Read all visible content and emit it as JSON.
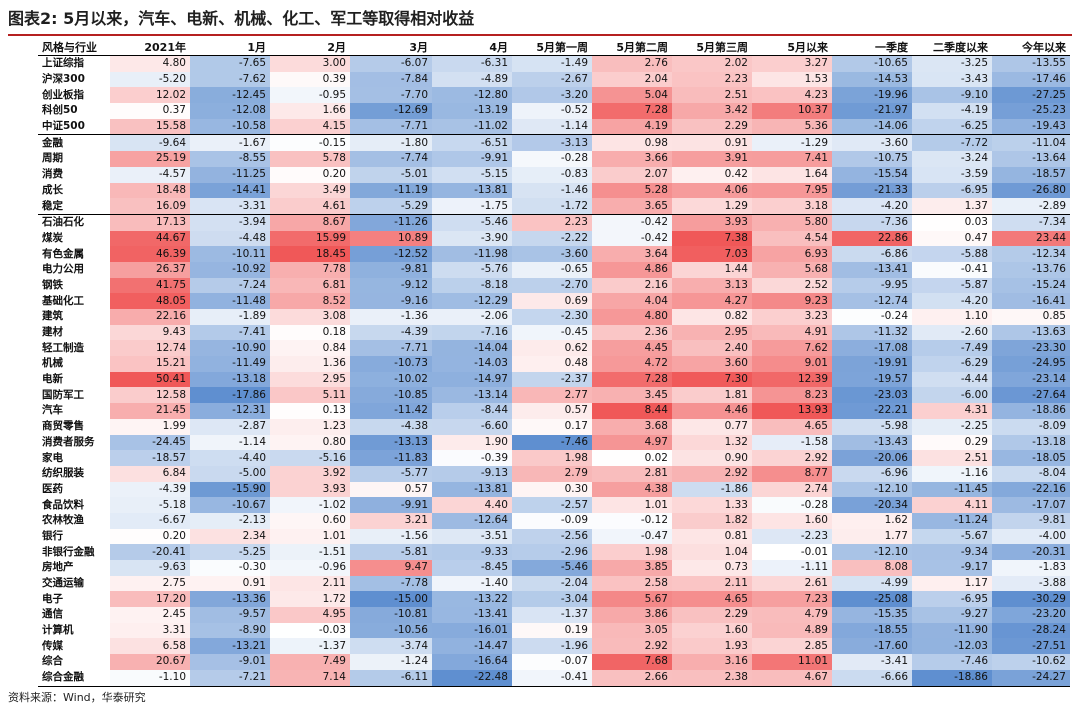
{
  "title": "图表2:  5月以来，汽车、电新、机械、化工、军工等取得相对收益",
  "source": "资料来源：Wind，华泰研究",
  "colors": {
    "positive": "#f06060",
    "negative": "#5f8fd0",
    "title_rule": "#b52020"
  },
  "chart_data": {
    "type": "heatmap",
    "columns": [
      "风格与行业",
      "2021年",
      "1月",
      "2月",
      "3月",
      "4月",
      "5月第一周",
      "5月第二周",
      "5月第三周",
      "5月以来",
      "一季度",
      "二季度以来",
      "今年以来"
    ],
    "groups": [
      {
        "rows": [
          {
            "label": "上证综指",
            "values": [
              4.8,
              -7.65,
              3.0,
              -6.07,
              -6.31,
              -1.49,
              2.76,
              2.02,
              3.27,
              -10.65,
              -3.25,
              -13.55
            ]
          },
          {
            "label": "沪深300",
            "values": [
              -5.2,
              -7.62,
              0.39,
              -7.84,
              -4.89,
              -2.67,
              2.04,
              2.23,
              1.53,
              -14.53,
              -3.43,
              -17.46
            ]
          },
          {
            "label": "创业板指",
            "values": [
              12.02,
              -12.45,
              -0.95,
              -7.7,
              -12.8,
              -3.2,
              5.04,
              2.51,
              4.23,
              -19.96,
              -9.1,
              -27.25
            ]
          },
          {
            "label": "科创50",
            "values": [
              0.37,
              -12.08,
              1.66,
              -12.69,
              -13.19,
              -0.52,
              7.28,
              3.42,
              10.37,
              -21.97,
              -4.19,
              -25.23
            ]
          },
          {
            "label": "中证500",
            "values": [
              15.58,
              -10.58,
              4.15,
              -7.71,
              -11.02,
              -1.14,
              4.19,
              2.29,
              5.36,
              -14.06,
              -6.25,
              -19.43
            ]
          }
        ]
      },
      {
        "rows": [
          {
            "label": "金融",
            "values": [
              -9.64,
              -1.67,
              -0.15,
              -1.8,
              -6.51,
              -3.13,
              0.98,
              0.91,
              -1.29,
              -3.6,
              -7.72,
              -11.04
            ]
          },
          {
            "label": "周期",
            "values": [
              25.19,
              -8.55,
              5.78,
              -7.74,
              -9.91,
              -0.28,
              3.66,
              3.91,
              7.41,
              -10.75,
              -3.24,
              -13.64
            ]
          },
          {
            "label": "消费",
            "values": [
              -4.57,
              -11.25,
              0.2,
              -5.01,
              -5.15,
              -0.83,
              2.07,
              0.42,
              1.64,
              -15.54,
              -3.59,
              -18.57
            ]
          },
          {
            "label": "成长",
            "values": [
              18.48,
              -14.41,
              3.49,
              -11.19,
              -13.81,
              -1.46,
              5.28,
              4.06,
              7.95,
              -21.33,
              -6.95,
              -26.8
            ]
          },
          {
            "label": "稳定",
            "values": [
              16.09,
              -3.31,
              4.61,
              -5.29,
              -1.75,
              -1.72,
              3.65,
              1.29,
              3.18,
              -4.2,
              1.37,
              -2.89
            ]
          }
        ]
      },
      {
        "rows": [
          {
            "label": "石油石化",
            "values": [
              17.13,
              -3.94,
              8.67,
              -11.26,
              -5.46,
              2.23,
              -0.42,
              3.93,
              5.8,
              -7.36,
              0.03,
              -7.34
            ]
          },
          {
            "label": "煤炭",
            "values": [
              44.67,
              -4.48,
              15.99,
              10.89,
              -3.9,
              -2.22,
              -0.42,
              7.38,
              4.54,
              22.86,
              0.47,
              23.44
            ]
          },
          {
            "label": "有色金属",
            "values": [
              46.39,
              -10.11,
              18.45,
              -12.52,
              -11.98,
              -3.6,
              3.64,
              7.03,
              6.93,
              -6.86,
              -5.88,
              -12.34
            ]
          },
          {
            "label": "电力公用",
            "values": [
              26.37,
              -10.92,
              7.78,
              -9.81,
              -5.76,
              -0.65,
              4.86,
              1.44,
              5.68,
              -13.41,
              -0.41,
              -13.76
            ]
          },
          {
            "label": "钢铁",
            "values": [
              41.75,
              -7.24,
              6.81,
              -9.12,
              -8.18,
              -2.7,
              2.16,
              3.13,
              2.52,
              -9.95,
              -5.87,
              -15.24
            ]
          },
          {
            "label": "基础化工",
            "values": [
              48.05,
              -11.48,
              8.52,
              -9.16,
              -12.29,
              0.69,
              4.04,
              4.27,
              9.23,
              -12.74,
              -4.2,
              -16.41
            ]
          },
          {
            "label": "建筑",
            "values": [
              22.16,
              -1.89,
              3.08,
              -1.36,
              -2.06,
              -2.3,
              4.8,
              0.82,
              3.23,
              -0.24,
              1.1,
              0.85
            ]
          },
          {
            "label": "建材",
            "values": [
              9.43,
              -7.41,
              0.18,
              -4.39,
              -7.16,
              -0.45,
              2.36,
              2.95,
              4.91,
              -11.32,
              -2.6,
              -13.63
            ]
          },
          {
            "label": "轻工制造",
            "values": [
              12.74,
              -10.9,
              0.84,
              -7.71,
              -14.04,
              0.62,
              4.45,
              2.4,
              7.62,
              -17.08,
              -7.49,
              -23.3
            ]
          },
          {
            "label": "机械",
            "values": [
              15.21,
              -11.49,
              1.36,
              -10.73,
              -14.03,
              0.48,
              4.72,
              3.6,
              9.01,
              -19.91,
              -6.29,
              -24.95
            ]
          },
          {
            "label": "电新",
            "values": [
              50.41,
              -13.18,
              2.95,
              -10.02,
              -14.97,
              -2.37,
              7.28,
              7.3,
              12.39,
              -19.57,
              -4.44,
              -23.14
            ]
          },
          {
            "label": "国防军工",
            "values": [
              12.58,
              -17.86,
              5.11,
              -10.85,
              -13.14,
              2.77,
              3.45,
              1.81,
              8.23,
              -23.03,
              -6.0,
              -27.64
            ]
          },
          {
            "label": "汽车",
            "values": [
              21.45,
              -12.31,
              0.13,
              -11.42,
              -8.44,
              0.57,
              8.44,
              4.46,
              13.93,
              -22.21,
              4.31,
              -18.86
            ]
          },
          {
            "label": "商贸零售",
            "values": [
              1.99,
              -2.87,
              1.23,
              -4.38,
              -6.6,
              0.17,
              3.68,
              0.77,
              4.65,
              -5.98,
              -2.25,
              -8.09
            ]
          },
          {
            "label": "消费者服务",
            "values": [
              -24.45,
              -1.14,
              0.8,
              -13.13,
              1.9,
              -7.46,
              4.97,
              1.32,
              -1.58,
              -13.43,
              0.29,
              -13.18
            ]
          },
          {
            "label": "家电",
            "values": [
              -18.57,
              -4.4,
              -5.16,
              -11.83,
              -0.39,
              1.98,
              0.02,
              0.9,
              2.92,
              -20.06,
              2.51,
              -18.05
            ]
          },
          {
            "label": "纺织服装",
            "values": [
              6.84,
              -5.0,
              3.92,
              -5.77,
              -9.13,
              2.79,
              2.81,
              2.92,
              8.77,
              -6.96,
              -1.16,
              -8.04
            ]
          },
          {
            "label": "医药",
            "values": [
              -4.39,
              -15.9,
              3.93,
              0.57,
              -13.81,
              0.3,
              4.38,
              -1.86,
              2.74,
              -12.1,
              -11.45,
              -22.16
            ]
          },
          {
            "label": "食品饮料",
            "values": [
              -5.18,
              -10.67,
              -1.02,
              -9.91,
              4.4,
              -2.57,
              1.01,
              1.33,
              -0.28,
              -20.34,
              4.11,
              -17.07
            ]
          },
          {
            "label": "农林牧渔",
            "values": [
              -6.67,
              -2.13,
              0.6,
              3.21,
              -12.64,
              -0.09,
              -0.12,
              1.82,
              1.6,
              1.62,
              -11.24,
              -9.81
            ]
          },
          {
            "label": "银行",
            "values": [
              0.2,
              2.34,
              1.01,
              -1.56,
              -3.51,
              -2.56,
              -0.47,
              0.81,
              -2.23,
              1.77,
              -5.67,
              -4.0
            ]
          },
          {
            "label": "非银行金融",
            "values": [
              -20.41,
              -5.25,
              -1.51,
              -5.81,
              -9.33,
              -2.96,
              1.98,
              1.04,
              -0.01,
              -12.1,
              -9.34,
              -20.31
            ]
          },
          {
            "label": "房地产",
            "values": [
              -9.63,
              -0.3,
              -0.96,
              9.47,
              -8.45,
              -5.46,
              3.85,
              0.73,
              -1.11,
              8.08,
              -9.17,
              -1.83
            ]
          },
          {
            "label": "交通运输",
            "values": [
              2.75,
              0.91,
              2.11,
              -7.78,
              -1.4,
              -2.04,
              2.58,
              2.11,
              2.61,
              -4.99,
              1.17,
              -3.88
            ]
          },
          {
            "label": "电子",
            "values": [
              17.2,
              -13.36,
              1.72,
              -15.0,
              -13.22,
              -3.04,
              5.67,
              4.65,
              7.23,
              -25.08,
              -6.95,
              -30.29
            ]
          },
          {
            "label": "通信",
            "values": [
              2.45,
              -9.57,
              4.95,
              -10.81,
              -13.41,
              -1.37,
              3.86,
              2.29,
              4.79,
              -15.35,
              -9.27,
              -23.2
            ]
          },
          {
            "label": "计算机",
            "values": [
              3.31,
              -8.9,
              -0.03,
              -10.56,
              -16.01,
              0.19,
              3.05,
              1.6,
              4.89,
              -18.55,
              -11.9,
              -28.24
            ]
          },
          {
            "label": "传媒",
            "values": [
              6.58,
              -13.21,
              -1.37,
              -3.74,
              -14.47,
              -1.96,
              2.92,
              1.93,
              2.85,
              -17.6,
              -12.03,
              -27.51
            ]
          },
          {
            "label": "综合",
            "values": [
              20.67,
              -9.01,
              7.49,
              -1.24,
              -16.64,
              -0.07,
              7.68,
              3.16,
              11.01,
              -3.41,
              -7.46,
              -10.62
            ]
          },
          {
            "label": "综合金融",
            "values": [
              -1.1,
              -7.21,
              7.14,
              -6.11,
              -22.48,
              -0.41,
              2.66,
              2.38,
              4.67,
              -6.66,
              -18.86,
              -24.27
            ]
          }
        ]
      }
    ]
  }
}
